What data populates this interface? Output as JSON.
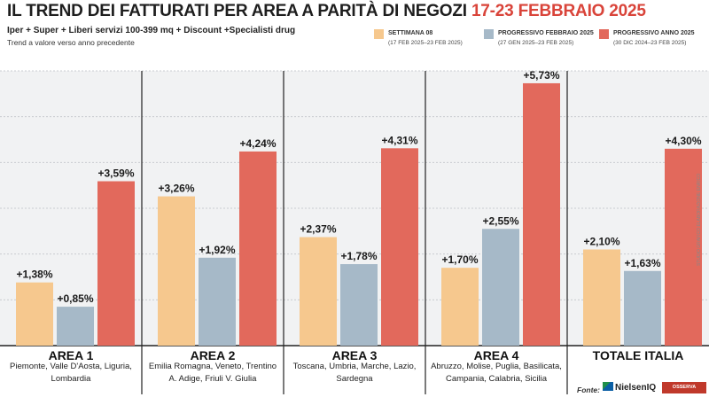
{
  "header": {
    "title_main": "IL TREND DEI FATTURATI PER AREA A PARITÀ DI NEGOZI",
    "title_period": "17-23 FEBBRAIO 2025",
    "subtitle": "Iper + Super + Liberi servizi 100-399 mq + Discount +Specialisti drug",
    "note": "Trend a valore verso anno precedente"
  },
  "legend": [
    {
      "name": "SETTIMANA 08",
      "period": "(17 FEB 2025–23 FEB 2025)",
      "color": "#f6c88e"
    },
    {
      "name": "PROGRESSIVO FEBBRAIO 2025",
      "period": "(27 GEN 2025–23 FEB 2025)",
      "color": "#a6b9c8"
    },
    {
      "name": "PROGRESSIVO ANNO 2025",
      "period": "(30 DIC 2024–23 FEB 2025)",
      "color": "#e2695c"
    }
  ],
  "groups": [
    {
      "name": "AREA 1",
      "regions": "Piemonte, Valle D'Aosta, Liguria, Lombardia"
    },
    {
      "name": "AREA 2",
      "regions": "Emilia Romagna, Veneto, Trentino A. Adige, Friuli V. Giulia"
    },
    {
      "name": "AREA 3",
      "regions": "Toscana, Umbria, Marche, Lazio, Sardegna"
    },
    {
      "name": "AREA 4",
      "regions": "Abruzzo, Molise, Puglia, Basilicata, Campania, Calabria, Sicilia"
    },
    {
      "name": "TOTALE ITALIA",
      "regions": ""
    }
  ],
  "chart_data": {
    "type": "bar",
    "categories": [
      "AREA 1",
      "AREA 2",
      "AREA 3",
      "AREA 4",
      "TOTALE ITALIA"
    ],
    "series": [
      {
        "name": "SETTIMANA 08",
        "values": [
          1.38,
          3.26,
          2.37,
          1.7,
          2.1
        ],
        "labels": [
          "+1,38%",
          "+3,26%",
          "+2,37%",
          "+1,70%",
          "+2,10%"
        ]
      },
      {
        "name": "PROGRESSIVO FEBBRAIO 2025",
        "values": [
          0.85,
          1.92,
          1.78,
          2.55,
          1.63
        ],
        "labels": [
          "+0,85%",
          "+1,92%",
          "+1,78%",
          "+2,55%",
          "+1,63%"
        ]
      },
      {
        "name": "PROGRESSIVO ANNO 2025",
        "values": [
          3.59,
          4.24,
          4.31,
          5.73,
          4.3
        ],
        "labels": [
          "+3,59%",
          "+4,24%",
          "+4,31%",
          "+5,73%",
          "+4,30%"
        ]
      }
    ],
    "ylim": [
      0,
      6
    ],
    "grid": true,
    "legend_position": "top-right",
    "xlabel": "",
    "ylabel": ""
  },
  "footer": {
    "source_label": "Fonte:",
    "source_name": "NielsenIQ",
    "logo_text": "OSSERVA CONSUMI",
    "credit": "STUDIO GRAFICO ELABORAZIONE ENRICO"
  }
}
